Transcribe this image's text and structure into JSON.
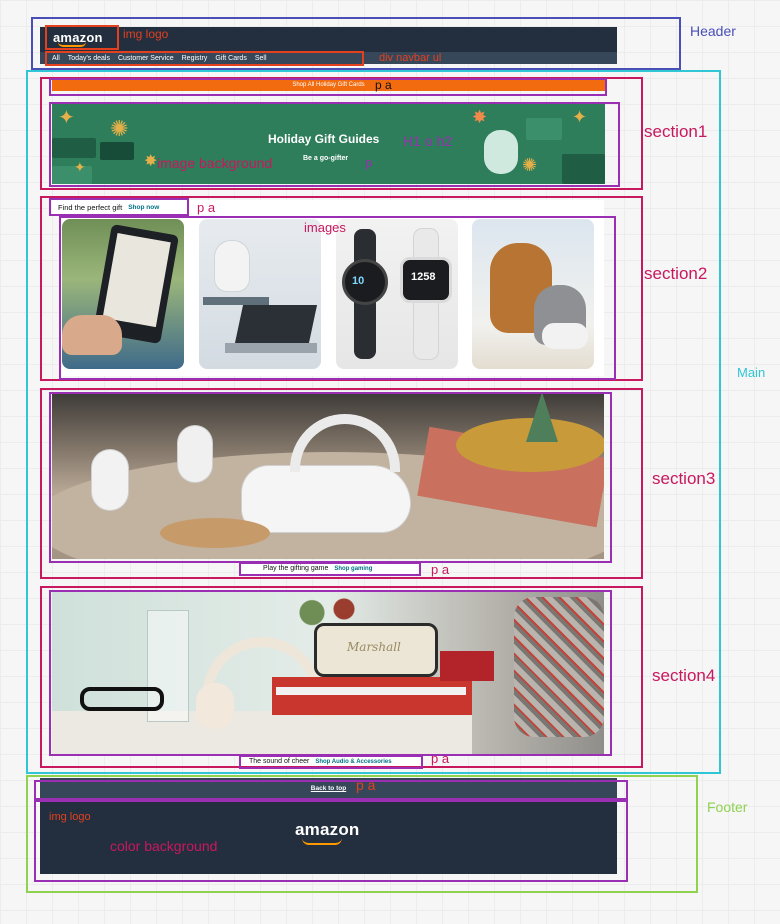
{
  "header": {
    "logo_text": "amazon",
    "nav_items": [
      "All",
      "Today's deals",
      "Customer Service",
      "Registry",
      "Gift Cards",
      "Sell"
    ]
  },
  "section1": {
    "bar_text": "Shop All Holiday Gift Cards",
    "banner_title": "Holiday Gift Guides",
    "banner_subtitle": "Be a go-gifter"
  },
  "section2": {
    "find_text": "Find the perfect gift",
    "find_link": "Shop now"
  },
  "section3": {
    "caption_text": "Play the gifting game",
    "caption_link": "Shop gaming"
  },
  "section4": {
    "caption_text": "The sound of cheer",
    "caption_link": "Shop Audio & Accessories",
    "speaker_brand": "Marshall"
  },
  "footer": {
    "back_to_top": "Back to top",
    "logo_text": "amazon"
  },
  "annotations": {
    "header": "Header",
    "img_logo": "img logo",
    "div_navbar": "div navbar ul",
    "main": "Main",
    "p_a": "p a",
    "section1": "section1",
    "h1_h2": "H1 o h2",
    "image_background": "image background",
    "p": "p",
    "section2": "section2",
    "images": "images",
    "section3": "section3",
    "section4": "section4",
    "footer": "Footer",
    "img_logo_footer": "img logo",
    "color_background": "color background"
  },
  "colors": {
    "header_box": "#4a4fb8",
    "main_box": "#2fc6d6",
    "footer_box": "#8fd24f",
    "section_box": "#c8185e",
    "inner_box": "#9a2fb3",
    "red_box": "#e2401f",
    "amazon_dark": "#232f3e",
    "amazon_nav": "#37475a",
    "amazon_orange": "#ff9900"
  }
}
